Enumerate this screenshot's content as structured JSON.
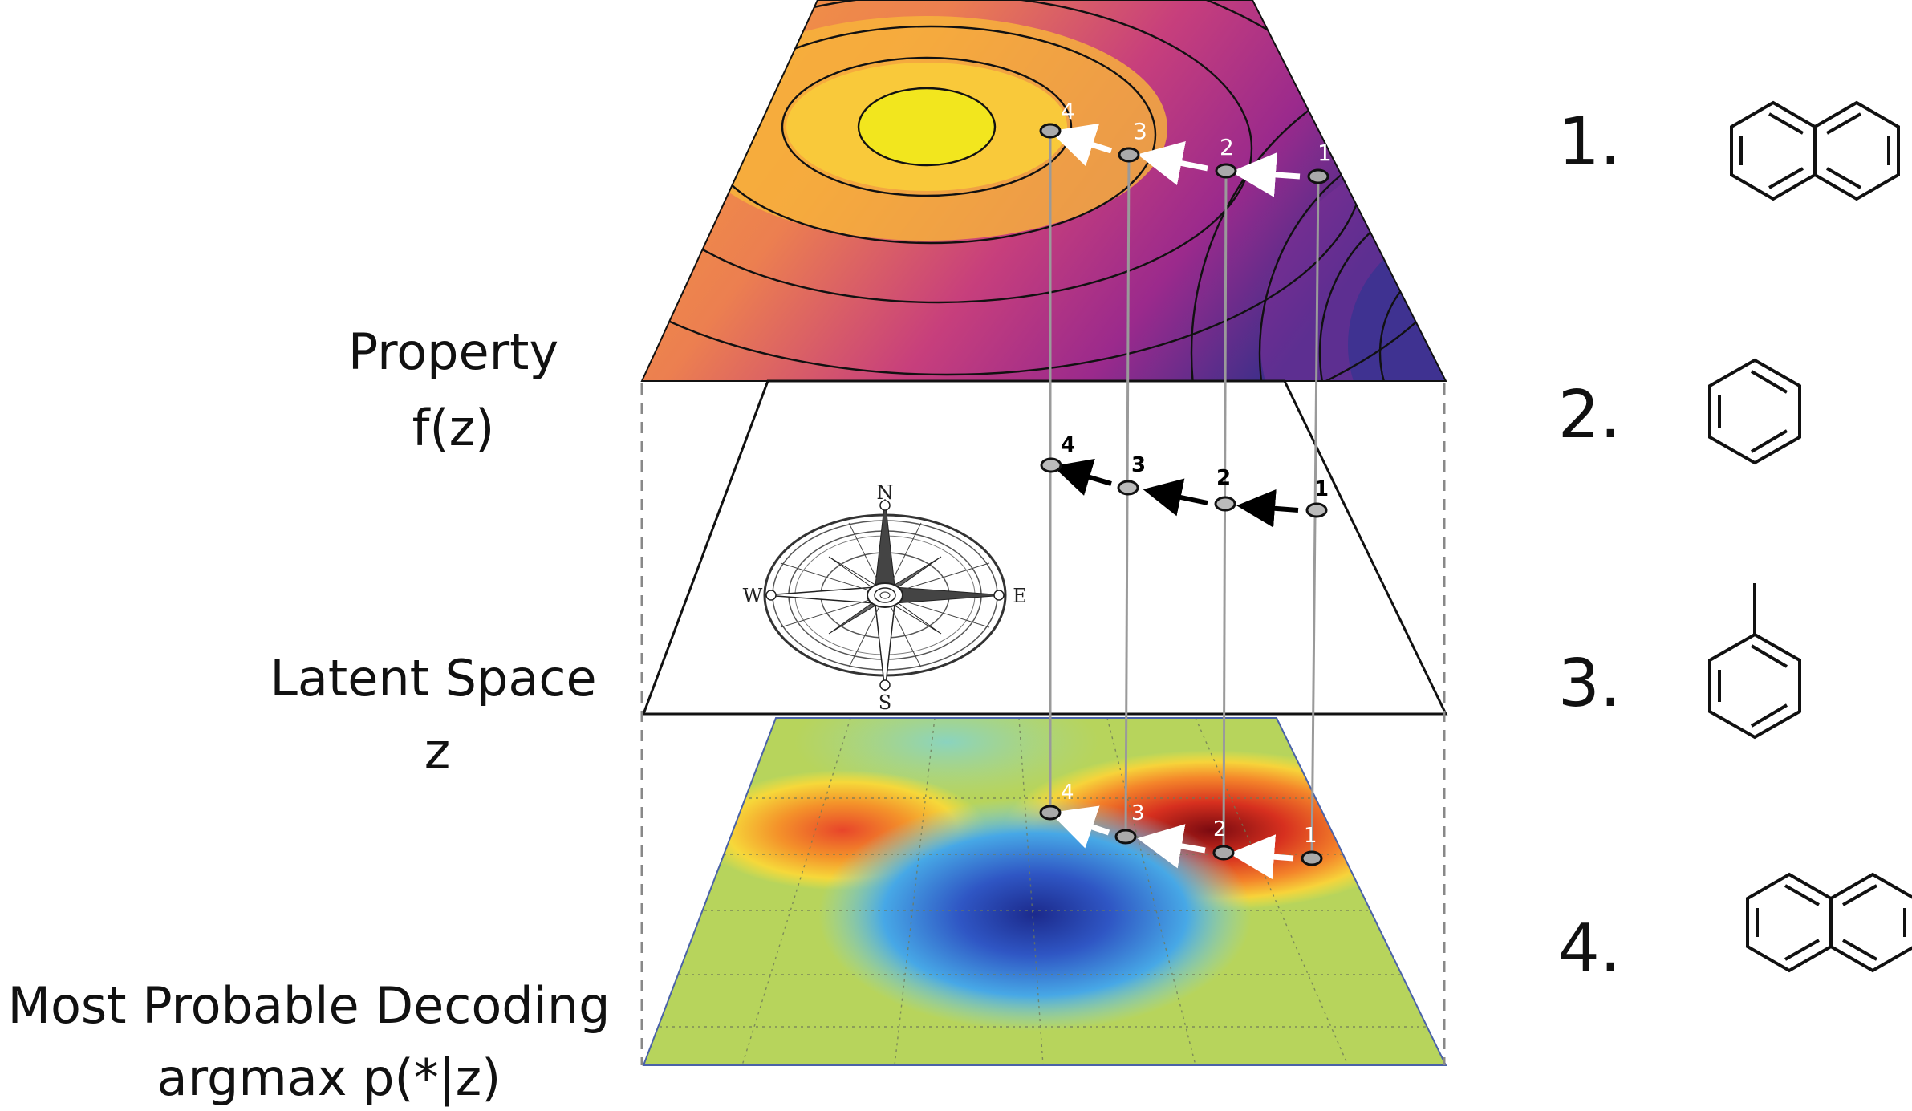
{
  "labels": {
    "property_line1": "Property",
    "property_line2": "f(z)",
    "latent_line1": "Latent Space",
    "latent_line2": "z",
    "decoding_line1": "Most Probable Decoding",
    "decoding_line2": "argmax p(*|z)"
  },
  "compass": {
    "north": "N",
    "south": "S",
    "east": "E",
    "west": "W"
  },
  "path_points": [
    "1",
    "2",
    "3",
    "4"
  ],
  "molecules": [
    {
      "number": "1.",
      "structure": "naphthalene"
    },
    {
      "number": "2.",
      "structure": "benzene"
    },
    {
      "number": "3.",
      "structure": "toluene"
    },
    {
      "number": "4.",
      "structure": "naphthalene"
    }
  ],
  "colors": {
    "property_peak": "#f4e81c",
    "property_low": "#2c3389",
    "decoding_high": "#7a0a10",
    "decoding_low": "#1c2a8c",
    "decoding_mid": "#b5d55a"
  }
}
